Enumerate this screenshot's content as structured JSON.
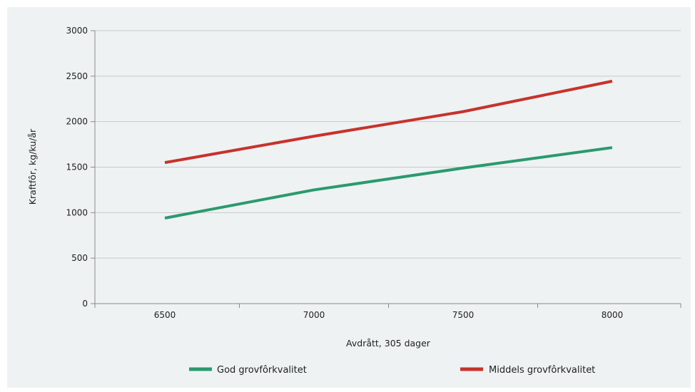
{
  "chart_data": {
    "type": "line",
    "title": "",
    "xlabel": "Avdrått, 305 dager",
    "ylabel": "Kraftfôr, kg/ku/år",
    "x": [
      6500,
      7000,
      7500,
      8000
    ],
    "ylim": [
      0,
      3000
    ],
    "yticks": [
      0,
      500,
      1000,
      1500,
      2000,
      2500,
      3000
    ],
    "grid": "horizontal",
    "legend_position": "bottom",
    "series": [
      {
        "name": "God grovfôrkvalitet",
        "color": "#2a9a6e",
        "values": [
          940,
          1250,
          1490,
          1715
        ]
      },
      {
        "name": "Middels grovfôrkvalitet",
        "color": "#c8322c",
        "values": [
          1550,
          1840,
          2110,
          2445
        ]
      }
    ]
  }
}
